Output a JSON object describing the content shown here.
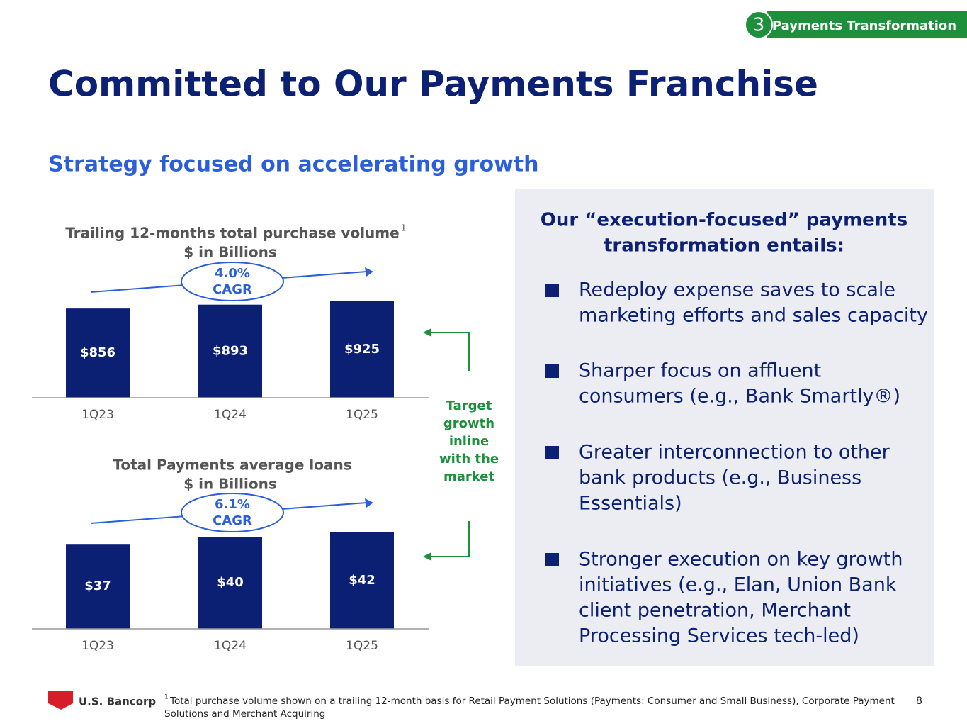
{
  "badge": {
    "number": "3",
    "label": "Payments Transformation"
  },
  "header": {
    "title": "Committed to Our Payments Franchise",
    "subtitle": "Strategy focused on accelerating growth"
  },
  "chart_data": [
    {
      "type": "bar",
      "title": "Trailing 12-months total purchase volume",
      "title_note": "1",
      "subtitle": "$ in Billions",
      "categories": [
        "1Q23",
        "1Q24",
        "1Q25"
      ],
      "values": [
        856,
        893,
        925
      ],
      "value_labels": [
        "$856",
        "$893",
        "$925"
      ],
      "color": "#0b1f73",
      "cagr_value": "4.0%",
      "cagr_label": "CAGR"
    },
    {
      "type": "bar",
      "title": "Total Payments average loans",
      "subtitle": "$ in Billions",
      "categories": [
        "1Q23",
        "1Q24",
        "1Q25"
      ],
      "values": [
        37,
        40,
        42
      ],
      "value_labels": [
        "$37",
        "$40",
        "$42"
      ],
      "color": "#0b1f73",
      "cagr_value": "6.1%",
      "cagr_label": "CAGR"
    }
  ],
  "target_note": [
    "Target",
    "growth",
    "inline",
    "with the",
    "market"
  ],
  "panel": {
    "heading": [
      "Our “execution-focused” payments",
      "transformation entails:"
    ],
    "bullets": [
      [
        "Redeploy expense saves to scale",
        "marketing efforts and sales capacity"
      ],
      [
        "Sharper focus on affluent",
        "consumers (e.g., Bank Smartly®)"
      ],
      [
        "Greater interconnection to other",
        "bank products (e.g., Business",
        "Essentials)"
      ],
      [
        "Stronger execution on key growth",
        "initiatives (e.g., Elan, Union Bank",
        "client penetration, Merchant",
        "Processing Services tech-led)"
      ]
    ]
  },
  "footer": {
    "logo": "U.S. Bancorp",
    "footnote_mark": "1",
    "footnote": [
      "Total purchase volume shown on a trailing 12-month basis for Retail Payment Solutions (Payments: Consumer and Small Business), Corporate Payment",
      "Solutions and Merchant Acquiring"
    ],
    "page": "8"
  }
}
